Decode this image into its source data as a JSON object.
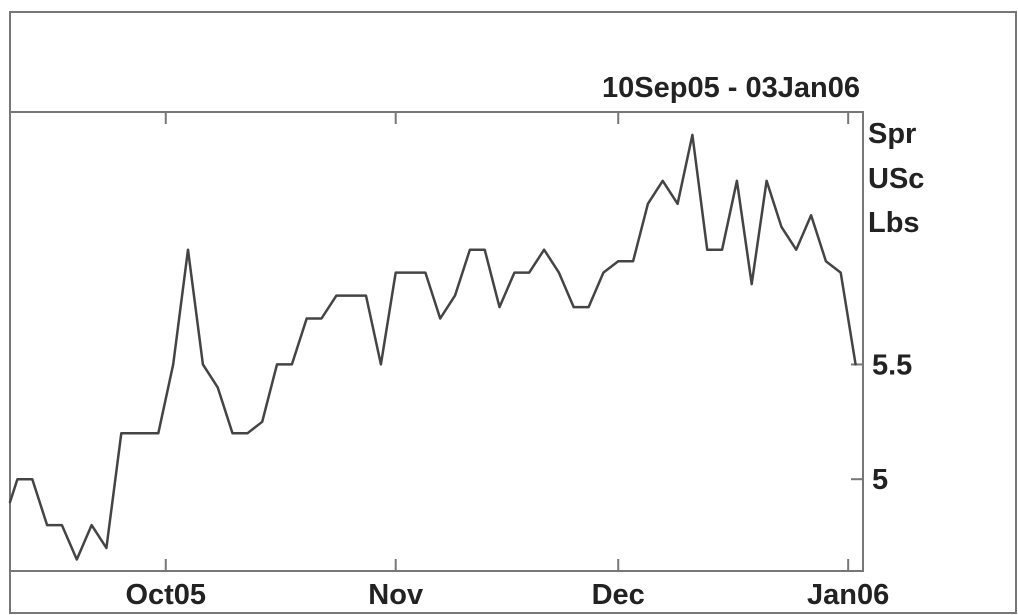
{
  "chart_data": {
    "type": "line",
    "title": "10Sep05 - 03Jan06",
    "ylabel_lines": [
      "Spr",
      "USc",
      "Lbs"
    ],
    "x_tick_labels": [
      "Oct05",
      "Nov",
      "Dec",
      "Jan06"
    ],
    "x_ticks": [
      "2005-10-01",
      "2005-11-01",
      "2005-12-01",
      "2006-01-01"
    ],
    "x_range": [
      "2005-09-10",
      "2006-01-03"
    ],
    "y_tick_labels": [
      "5",
      "5.5"
    ],
    "y_ticks": [
      5.0,
      5.5
    ],
    "ylim": [
      4.6,
      6.6
    ],
    "grid": false,
    "legend": "none",
    "line_color": "#444444",
    "series": [
      {
        "x": [
          "2005-09-10",
          "2005-09-11",
          "2005-09-13",
          "2005-09-15",
          "2005-09-17",
          "2005-09-19",
          "2005-09-21",
          "2005-09-23",
          "2005-09-25",
          "2005-09-28",
          "2005-09-30",
          "2005-10-02",
          "2005-10-04",
          "2005-10-06",
          "2005-10-08",
          "2005-10-10",
          "2005-10-12",
          "2005-10-14",
          "2005-10-16",
          "2005-10-18",
          "2005-10-20",
          "2005-10-22",
          "2005-10-24",
          "2005-10-26",
          "2005-10-28",
          "2005-10-30",
          "2005-11-01",
          "2005-11-03",
          "2005-11-05",
          "2005-11-07",
          "2005-11-09",
          "2005-11-11",
          "2005-11-13",
          "2005-11-15",
          "2005-11-17",
          "2005-11-19",
          "2005-11-21",
          "2005-11-23",
          "2005-11-25",
          "2005-11-27",
          "2005-11-29",
          "2005-12-01",
          "2005-12-03",
          "2005-12-05",
          "2005-12-07",
          "2005-12-09",
          "2005-12-11",
          "2005-12-13",
          "2005-12-15",
          "2005-12-17",
          "2005-12-19",
          "2005-12-21",
          "2005-12-23",
          "2005-12-25",
          "2005-12-27",
          "2005-12-29",
          "2005-12-31",
          "2006-01-02"
        ],
        "y": [
          4.9,
          5.0,
          5.0,
          4.8,
          4.8,
          4.65,
          4.8,
          4.7,
          5.2,
          5.2,
          5.2,
          5.5,
          6.0,
          5.5,
          5.4,
          5.2,
          5.2,
          5.25,
          5.5,
          5.5,
          5.7,
          5.7,
          5.8,
          5.8,
          5.8,
          5.5,
          5.9,
          5.9,
          5.9,
          5.7,
          5.8,
          6.0,
          6.0,
          5.75,
          5.9,
          5.9,
          6.0,
          5.9,
          5.75,
          5.75,
          5.9,
          5.95,
          5.95,
          6.2,
          6.3,
          6.2,
          6.5,
          6.0,
          6.0,
          6.3,
          5.85,
          6.3,
          6.1,
          6.0,
          6.15,
          5.95,
          5.9,
          5.5
        ]
      }
    ]
  }
}
